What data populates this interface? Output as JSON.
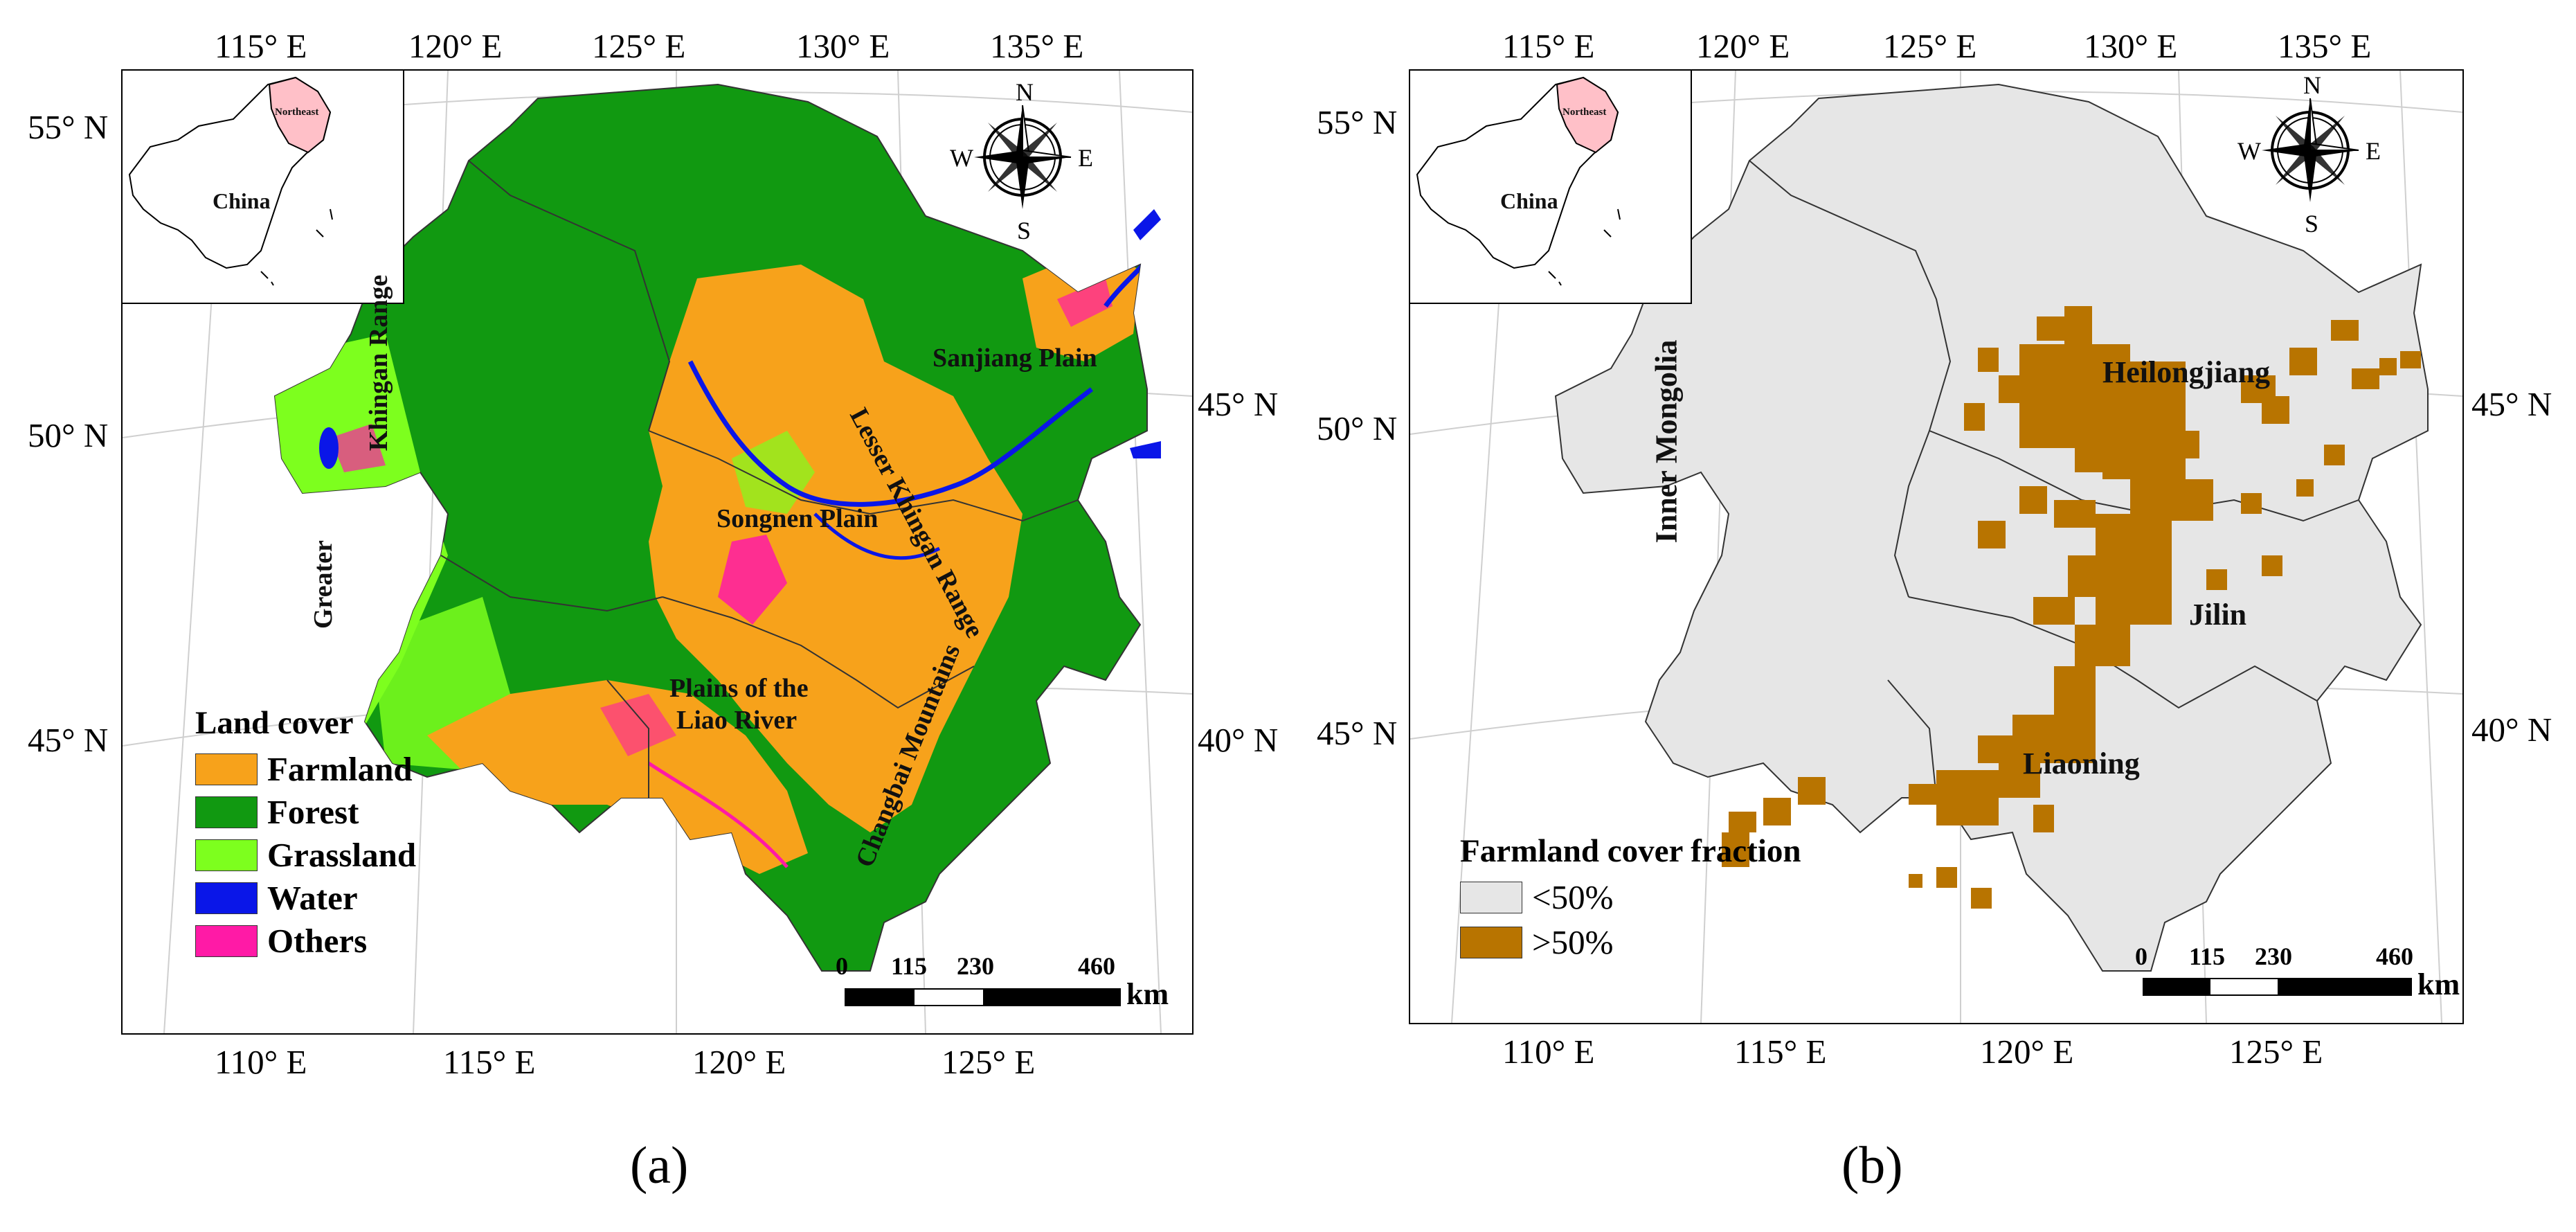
{
  "panel_a": {
    "caption": "(a)",
    "top_lon_labels": [
      "115° E",
      "120° E",
      "125° E",
      "130° E",
      "135° E"
    ],
    "bottom_lon_labels": [
      "110° E",
      "115° E",
      "120° E",
      "125° E"
    ],
    "left_lat_labels": [
      "55° N",
      "50° N",
      "45° N"
    ],
    "right_lat_labels": [
      "45° N",
      "40° N"
    ],
    "inset": {
      "country": "China",
      "region": "Northeast"
    },
    "compass": {
      "n": "N",
      "s": "S",
      "e": "E",
      "w": "W"
    },
    "map_labels": {
      "khingan_range": "Khingan Range",
      "greater": "Greater",
      "sanjiang": "Sanjiang Plain",
      "lesser": "Lesser Khingan Range",
      "songnen": "Songnen Plain",
      "plains_liao_1": "Plains of the",
      "plains_liao_2": "Liao River",
      "changbai": "Changbai Mountains"
    },
    "legend": {
      "title": "Land cover",
      "items": [
        {
          "label": "Farmland",
          "color": "#f7a21b"
        },
        {
          "label": "Forest",
          "color": "#119911"
        },
        {
          "label": "Grassland",
          "color": "#7dff1e"
        },
        {
          "label": "Water",
          "color": "#0a16e8"
        },
        {
          "label": "Others",
          "color": "#ff1aa6"
        }
      ]
    },
    "scale": {
      "ticks": [
        "0",
        "115",
        "230",
        "460"
      ],
      "unit": "km"
    }
  },
  "panel_b": {
    "caption": "(b)",
    "top_lon_labels": [
      "115° E",
      "120° E",
      "125° E",
      "130° E",
      "135° E"
    ],
    "bottom_lon_labels": [
      "110° E",
      "115° E",
      "120° E",
      "125° E"
    ],
    "left_lat_labels": [
      "55° N",
      "50° N",
      "45° N"
    ],
    "right_lat_labels": [
      "45° N",
      "40° N"
    ],
    "inset": {
      "country": "China",
      "region": "Northeast"
    },
    "compass": {
      "n": "N",
      "s": "S",
      "e": "E",
      "w": "W"
    },
    "map_labels": {
      "inner_mongolia": "Inner Mongolia",
      "heilongjiang": "Heilongjiang",
      "jilin": "Jilin",
      "liaoning": "Liaoning"
    },
    "legend": {
      "title": "Farmland cover fraction",
      "items": [
        {
          "label": "<50%",
          "color": "#e6e6e6"
        },
        {
          "label": ">50%",
          "color": "#b87400"
        }
      ]
    },
    "scale": {
      "ticks": [
        "0",
        "115",
        "230",
        "460"
      ],
      "unit": "km"
    }
  }
}
